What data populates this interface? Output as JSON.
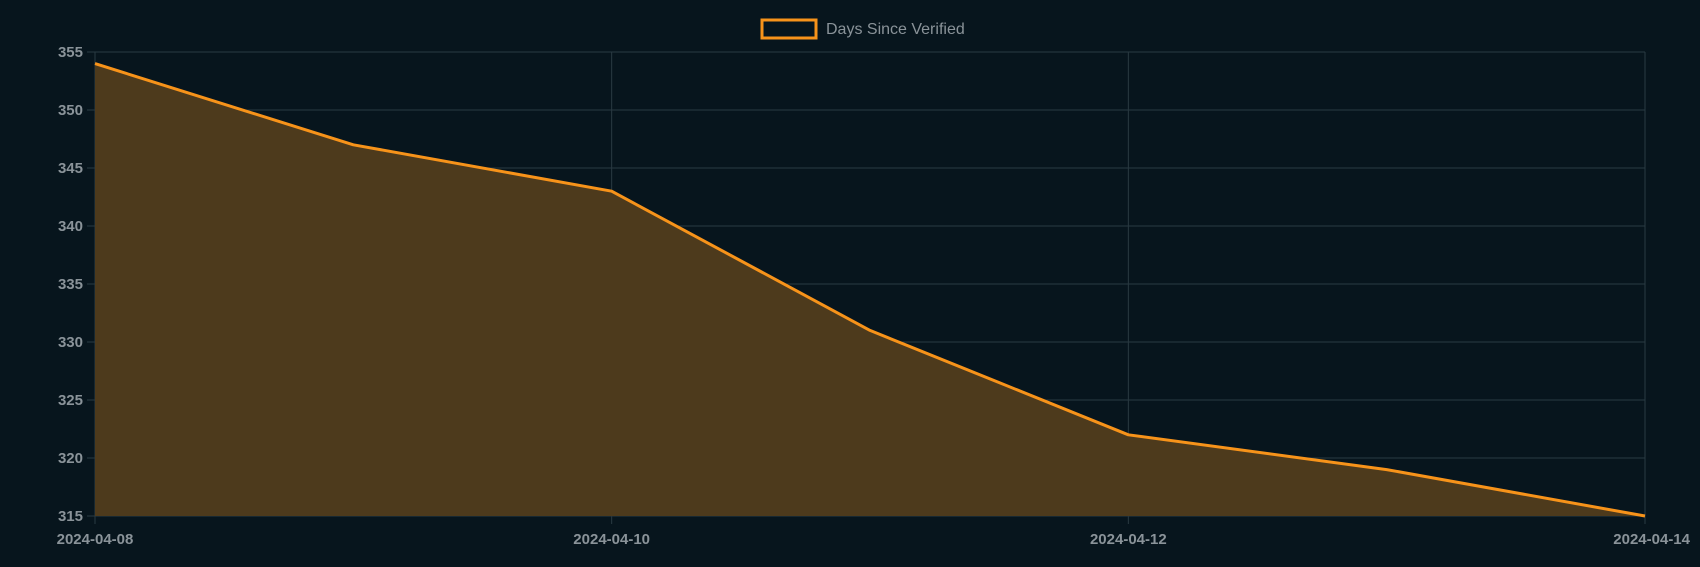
{
  "chart_data": {
    "type": "area",
    "title": "",
    "xlabel": "",
    "ylabel": "",
    "legend_position": "top",
    "grid": true,
    "series": [
      {
        "name": "Days Since Verified",
        "color": "#f7931a",
        "fill_color": "#4d3a1c",
        "points": [
          {
            "x": "2024-04-08",
            "y": 354
          },
          {
            "x": "2024-04-09",
            "y": 347
          },
          {
            "x": "2024-04-10",
            "y": 343
          },
          {
            "x": "2024-04-11",
            "y": 331
          },
          {
            "x": "2024-04-12",
            "y": 322
          },
          {
            "x": "2024-04-13",
            "y": 319
          },
          {
            "x": "2024-04-14",
            "y": 315
          }
        ]
      }
    ],
    "x_ticks": [
      "2024-04-08",
      "2024-04-10",
      "2024-04-12",
      "2024-04-14"
    ],
    "xlim": [
      "2024-04-08",
      "2024-04-14"
    ],
    "y_ticks": [
      315,
      320,
      325,
      330,
      335,
      340,
      345,
      350,
      355
    ],
    "ylim": [
      315,
      355
    ]
  },
  "colors": {
    "background": "#07151d",
    "grid": "#2a3a42",
    "tick_text": "#8a9399"
  }
}
